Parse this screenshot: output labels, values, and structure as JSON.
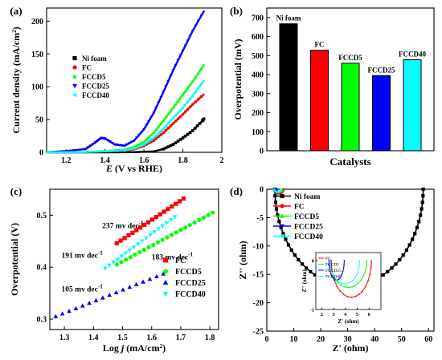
{
  "chart_data": [
    {
      "panel": "(a)",
      "type": "line",
      "xlabel_var": "E",
      "xlabel_rest": " (V vs RHE)",
      "ylabel": "Current density (mA/cm",
      "ylabel_sup": "2",
      "ylabel_close": ")",
      "xlim": [
        1.1,
        2.0
      ],
      "ylim": [
        0,
        220
      ],
      "xticks": [
        1.2,
        1.4,
        1.6,
        1.8,
        2.0
      ],
      "yticks": [
        0,
        50,
        100,
        150,
        200
      ],
      "legend_position": "center-left",
      "series": [
        {
          "name": "Ni foam",
          "color": "#000000",
          "marker": "square",
          "x": [
            1.1,
            1.4,
            1.55,
            1.65,
            1.7,
            1.75,
            1.8,
            1.85,
            1.9,
            1.91
          ],
          "y": [
            0,
            0,
            0.3,
            1.5,
            5,
            12,
            22,
            33,
            48,
            52
          ]
        },
        {
          "name": "FC",
          "color": "#ff0000",
          "marker": "circle",
          "x": [
            1.1,
            1.3,
            1.4,
            1.5,
            1.55,
            1.6,
            1.65,
            1.7,
            1.75,
            1.8,
            1.85,
            1.91
          ],
          "y": [
            0,
            0.5,
            1.5,
            2.5,
            5,
            10,
            18,
            30,
            44,
            58,
            73,
            89
          ]
        },
        {
          "name": "FCCD5",
          "color": "#00ff00",
          "marker": "triangle-up",
          "x": [
            1.1,
            1.3,
            1.4,
            1.5,
            1.55,
            1.6,
            1.65,
            1.7,
            1.75,
            1.8,
            1.85,
            1.91
          ],
          "y": [
            0,
            0.5,
            2,
            4,
            8,
            16,
            30,
            48,
            68,
            88,
            108,
            134
          ]
        },
        {
          "name": "FCCD25",
          "color": "#0000ff",
          "marker": "triangle-down",
          "x": [
            1.1,
            1.2,
            1.3,
            1.35,
            1.38,
            1.4,
            1.45,
            1.5,
            1.55,
            1.6,
            1.65,
            1.7,
            1.75,
            1.8,
            1.85,
            1.91
          ],
          "y": [
            0,
            2,
            5,
            15,
            22,
            21,
            12,
            10,
            18,
            35,
            60,
            92,
            125,
            155,
            185,
            216
          ]
        },
        {
          "name": "FCCD40",
          "color": "#00ffff",
          "marker": "triangle-left",
          "x": [
            1.1,
            1.3,
            1.4,
            1.5,
            1.55,
            1.6,
            1.65,
            1.7,
            1.75,
            1.8,
            1.85,
            1.91
          ],
          "y": [
            0,
            0.5,
            1.5,
            3,
            6,
            12,
            22,
            36,
            52,
            68,
            86,
            110
          ]
        }
      ]
    },
    {
      "panel": "(b)",
      "type": "bar",
      "xlabel": "Catalysts",
      "ylabel": "Overpotential (mV)",
      "ylim": [
        0,
        750
      ],
      "yticks": [
        0,
        100,
        200,
        300,
        400,
        500,
        600,
        700
      ],
      "categories": [
        "Ni foam",
        "FC",
        "FCCD5",
        "FCCD25",
        "FCCD40"
      ],
      "values": [
        667,
        528,
        460,
        395,
        478
      ],
      "colors": [
        "#000000",
        "#ff0000",
        "#00ff00",
        "#0000ff",
        "#00ffff"
      ]
    },
    {
      "panel": "(c)",
      "type": "scatter",
      "xlabel": "Log ",
      "xlabel_var": "j",
      "xlabel_rest": " (mA/cm",
      "xlabel_sup": "2",
      "xlabel_close": ")",
      "ylabel": "Overpotential (V)",
      "xlim": [
        1.25,
        1.83
      ],
      "ylim": [
        0.28,
        0.55
      ],
      "xticks": [
        1.3,
        1.4,
        1.5,
        1.6,
        1.7,
        1.8
      ],
      "yticks": [
        0.3,
        0.4,
        0.5
      ],
      "legend_position": "bottom-right",
      "series": [
        {
          "name": "FC",
          "color": "#ff0000",
          "marker": "square",
          "x0": 1.48,
          "y0": 0.446,
          "x1": 1.71,
          "y1": 0.532,
          "n": 18
        },
        {
          "name": "FCCD5",
          "color": "#00ff00",
          "marker": "circle",
          "x0": 1.48,
          "y0": 0.405,
          "x1": 1.81,
          "y1": 0.505,
          "n": 22
        },
        {
          "name": "FCCD25",
          "color": "#0000ff",
          "marker": "triangle-up",
          "x0": 1.27,
          "y0": 0.305,
          "x1": 1.64,
          "y1": 0.387,
          "n": 17
        },
        {
          "name": "FCCD40",
          "color": "#00ffff",
          "marker": "triangle-down",
          "x0": 1.44,
          "y0": 0.398,
          "x1": 1.68,
          "y1": 0.497,
          "n": 18
        }
      ],
      "annotations": [
        {
          "text": "237 mv dec",
          "sup": "-1",
          "x": 1.43,
          "y": 0.475
        },
        {
          "text": "191 mv dec",
          "sup": "-1",
          "x": 1.29,
          "y": 0.418
        },
        {
          "text": "183 mv dec",
          "sup": "-1",
          "x": 1.6,
          "y": 0.415
        },
        {
          "text": "105 mv dec",
          "sup": "-1",
          "x": 1.29,
          "y": 0.353
        }
      ]
    },
    {
      "panel": "(d)",
      "type": "line",
      "xlabel": "Z' (ohm)",
      "ylabel": "Z'' (ohm)",
      "xlim": [
        0,
        62
      ],
      "ylim": [
        -25,
        0
      ],
      "xticks": [
        0,
        10,
        20,
        30,
        40,
        50,
        60
      ],
      "yticks": [
        -25,
        -20,
        -15,
        -10,
        -5,
        0
      ],
      "legend_position": "top-left",
      "series": [
        {
          "name": "Ni foam",
          "color": "#000000",
          "marker": "square",
          "type": "arc",
          "a": 3.0,
          "b": 58.0,
          "end": 58.0,
          "depth": 17
        },
        {
          "name": "FC",
          "color": "#ff0000",
          "marker": "circle",
          "type": "arc",
          "a": 2.8,
          "b": 6.2,
          "end": 6.2,
          "depth": 0.75
        },
        {
          "name": "FCCD5",
          "color": "#00ff00",
          "marker": "triangle-up",
          "type": "arc",
          "a": 2.7,
          "b": 5.8,
          "end": 5.8,
          "depth": 0.55
        },
        {
          "name": "FCCD25",
          "color": "#0000ff",
          "marker": "triangle-down",
          "type": "arc",
          "a": 2.6,
          "b": 3.9,
          "end": 3.9,
          "depth": 0.4
        },
        {
          "name": "FCCD40",
          "color": "#00ffff",
          "marker": "triangle-left",
          "type": "arc",
          "a": 2.7,
          "b": 5.2,
          "end": 5.2,
          "depth": 0.48
        }
      ],
      "inset": {
        "xlabel": "Z' (ohm)",
        "ylabel": "Z'' (ohm)",
        "xlim": [
          1.5,
          7
        ],
        "ylim": [
          -1,
          0
        ],
        "xticks": [
          2,
          3,
          4,
          5,
          6
        ],
        "yticks": [
          -1,
          0
        ],
        "legend": [
          "FC",
          "FCCD5",
          "FCCD25",
          "FCCD40"
        ]
      }
    }
  ]
}
